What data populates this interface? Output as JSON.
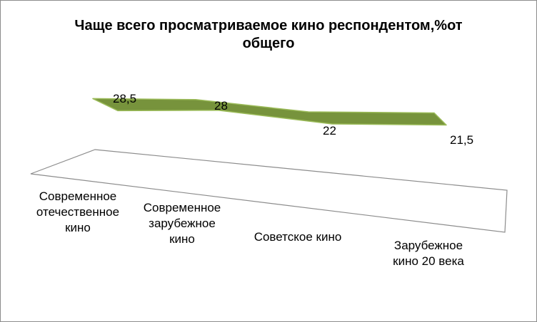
{
  "chart_data": {
    "type": "line",
    "title_lines": [
      "Чаще всего просматриваемое  кино респондентом,%от",
      "общего"
    ],
    "categories": [
      [
        "Современное",
        "отечественное",
        "кино"
      ],
      [
        "Современное",
        "зарубежное",
        "кино"
      ],
      [
        "Советское кино"
      ],
      [
        "Зарубежное",
        "кино 20 века"
      ]
    ],
    "values": [
      28.5,
      28,
      22,
      21.5
    ],
    "value_labels": [
      "28,5",
      "28",
      "22",
      "21,5"
    ],
    "style": "3d-ribbon",
    "ribbon_color": "#77933C",
    "ribbon_edge_color": "#9BBB59",
    "legend": "none",
    "grid": false
  }
}
